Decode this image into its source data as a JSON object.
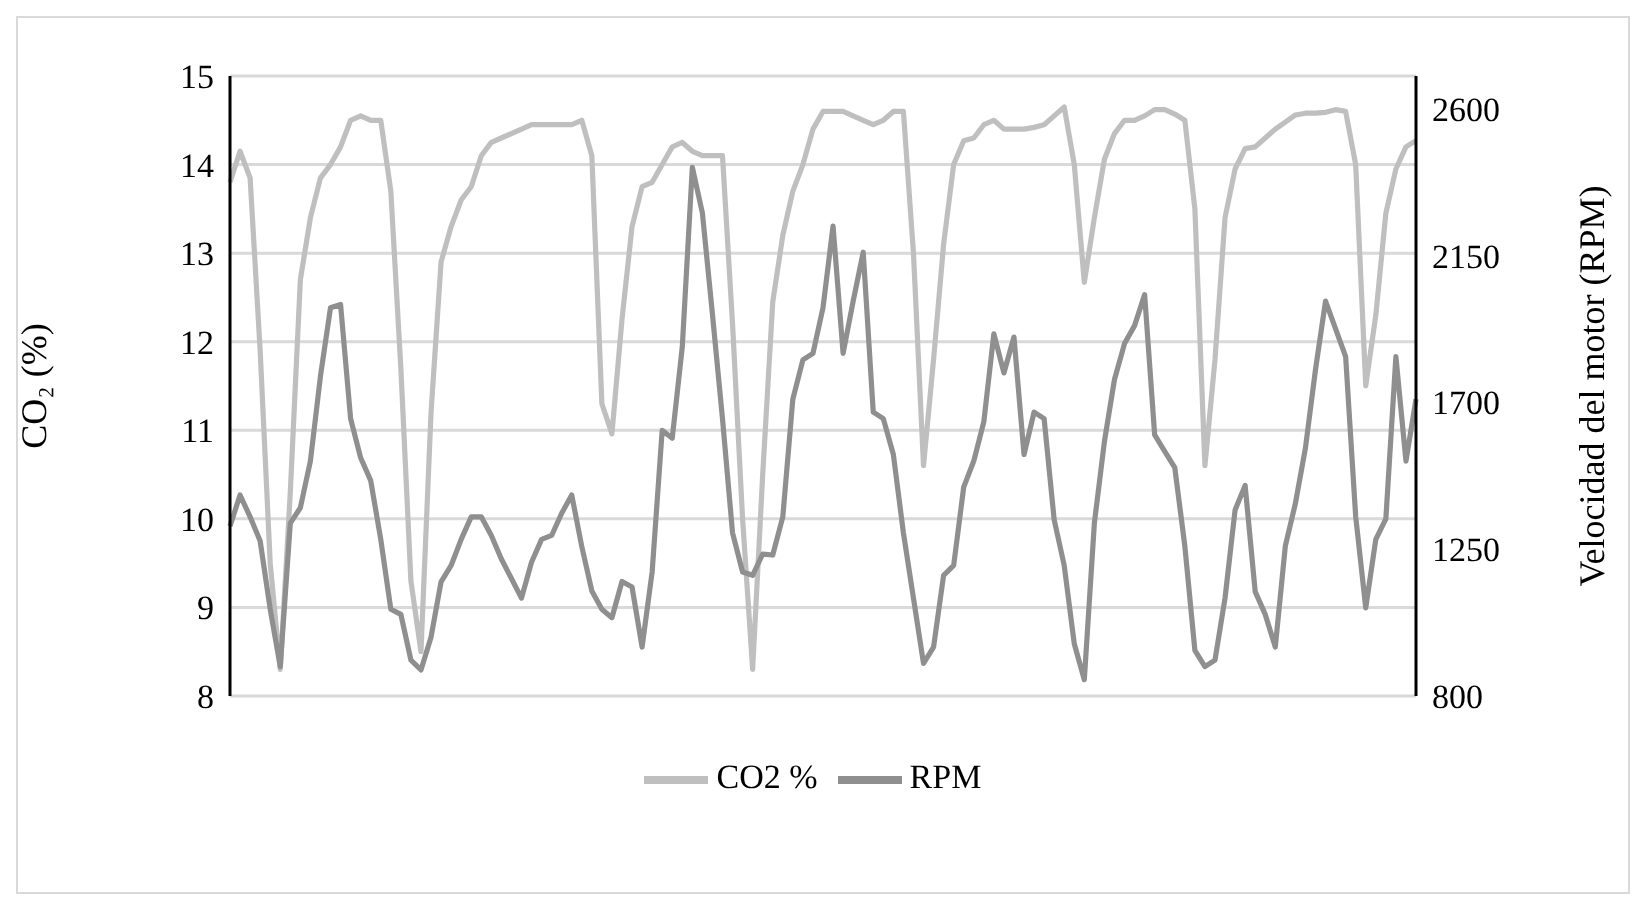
{
  "chart_data": {
    "type": "line",
    "ylabel": "CO₂ (%)",
    "y2label": "Velocidad del motor (RPM)",
    "categories": [
      null,
      null,
      null,
      null,
      null,
      null,
      null,
      null,
      null,
      null,
      null,
      null,
      null,
      null,
      null,
      null,
      null,
      null,
      null,
      null,
      null,
      null,
      null,
      null,
      null,
      null,
      null,
      null,
      null,
      null,
      null,
      null,
      null,
      null,
      null,
      null,
      null,
      null,
      null,
      null,
      null,
      null,
      null,
      null,
      null,
      null,
      null,
      null,
      null,
      null,
      null,
      null,
      null,
      null,
      null,
      null,
      null,
      null,
      null,
      null,
      null,
      null,
      null,
      null,
      null,
      null,
      null,
      null,
      null,
      null,
      null,
      null,
      null,
      null,
      null,
      null,
      null,
      null,
      null,
      null,
      null,
      null,
      null,
      null,
      null,
      null,
      null,
      null,
      null,
      null,
      null,
      null,
      null,
      null,
      null,
      null,
      null,
      null,
      null,
      null,
      null,
      null,
      null,
      null,
      null,
      null,
      null,
      null,
      null,
      null,
      null,
      null,
      null,
      null,
      null,
      null,
      null,
      null,
      null
    ],
    "series": [
      {
        "name": "CO2 %",
        "color": "#bfbfbf",
        "values": [
          13.8,
          14.15,
          13.85,
          11.9,
          9.5,
          8.3,
          10.3,
          12.7,
          13.4,
          13.85,
          14.0,
          14.2,
          14.5,
          14.55,
          14.5,
          14.5,
          13.7,
          11.7,
          9.3,
          8.5,
          11.2,
          12.9,
          13.3,
          13.6,
          13.75,
          14.1,
          14.25,
          14.3,
          14.35,
          14.4,
          14.45,
          14.45,
          14.45,
          14.45,
          14.45,
          14.5,
          14.1,
          11.3,
          10.96,
          12.25,
          13.3,
          13.75,
          13.8,
          14.0,
          14.2,
          14.25,
          14.15,
          14.1,
          14.1,
          14.1,
          12.2,
          10.0,
          8.3,
          10.5,
          12.45,
          13.2,
          13.7,
          14.0,
          14.4,
          14.6,
          14.6,
          14.6,
          14.55,
          14.5,
          14.45,
          14.5,
          14.6,
          14.6,
          13.0,
          10.6,
          11.8,
          13.1,
          14.0,
          14.27,
          14.3,
          14.45,
          14.5,
          14.4,
          14.4,
          14.4,
          14.42,
          14.45,
          14.55,
          14.65,
          14.0,
          12.67,
          13.4,
          14.06,
          14.35,
          14.5,
          14.5,
          14.55,
          14.62,
          14.62,
          14.57,
          14.5,
          13.5,
          10.6,
          11.8,
          13.4,
          13.95,
          14.18,
          14.2,
          14.3,
          14.4,
          14.48,
          14.56,
          14.58,
          14.58,
          14.59,
          14.62,
          14.6,
          14.0,
          11.5,
          12.3,
          13.45,
          13.95,
          14.2,
          14.27
        ]
      },
      {
        "name": "RPM",
        "color": "#8f8f8f",
        "axis": "y2",
        "values": [
          1320,
          1416,
          1349,
          1275,
          1066,
          890,
          1330,
          1377,
          1520,
          1780,
          1990,
          2000,
          1650,
          1530,
          1460,
          1280,
          1066,
          1050,
          910,
          880,
          980,
          1150,
          1200,
          1280,
          1349,
          1349,
          1292,
          1220,
          1160,
          1100,
          1210,
          1280,
          1292,
          1360,
          1416,
          1258,
          1122,
          1066,
          1040,
          1151,
          1134,
          950,
          1180,
          1614,
          1590,
          1870,
          2420,
          2280,
          1970,
          1650,
          1300,
          1180,
          1170,
          1235,
          1232,
          1349,
          1710,
          1830,
          1850,
          1990,
          2240,
          1850,
          2010,
          2160,
          1670,
          1650,
          1540,
          1300,
          1100,
          900,
          950,
          1170,
          1200,
          1440,
          1520,
          1640,
          1910,
          1790,
          1900,
          1540,
          1670,
          1650,
          1340,
          1200,
          960,
          850,
          1330,
          1580,
          1770,
          1880,
          1935,
          2030,
          1600,
          1550,
          1500,
          1260,
          940,
          890,
          910,
          1100,
          1370,
          1445,
          1120,
          1050,
          950,
          1260,
          1390,
          1560,
          1800,
          2010,
          1925,
          1840,
          1350,
          1070,
          1280,
          1343,
          1840,
          1520,
          1710
        ]
      }
    ],
    "ylim": [
      8,
      15
    ],
    "yticks": [
      8,
      9,
      10,
      11,
      12,
      13,
      14,
      15
    ],
    "y2lim": [
      800,
      2700
    ],
    "y2ticks": [
      800,
      1250,
      1700,
      2150,
      2600
    ],
    "grid": "y",
    "legend": "bottom",
    "marker": "none",
    "line_style": "solid"
  }
}
